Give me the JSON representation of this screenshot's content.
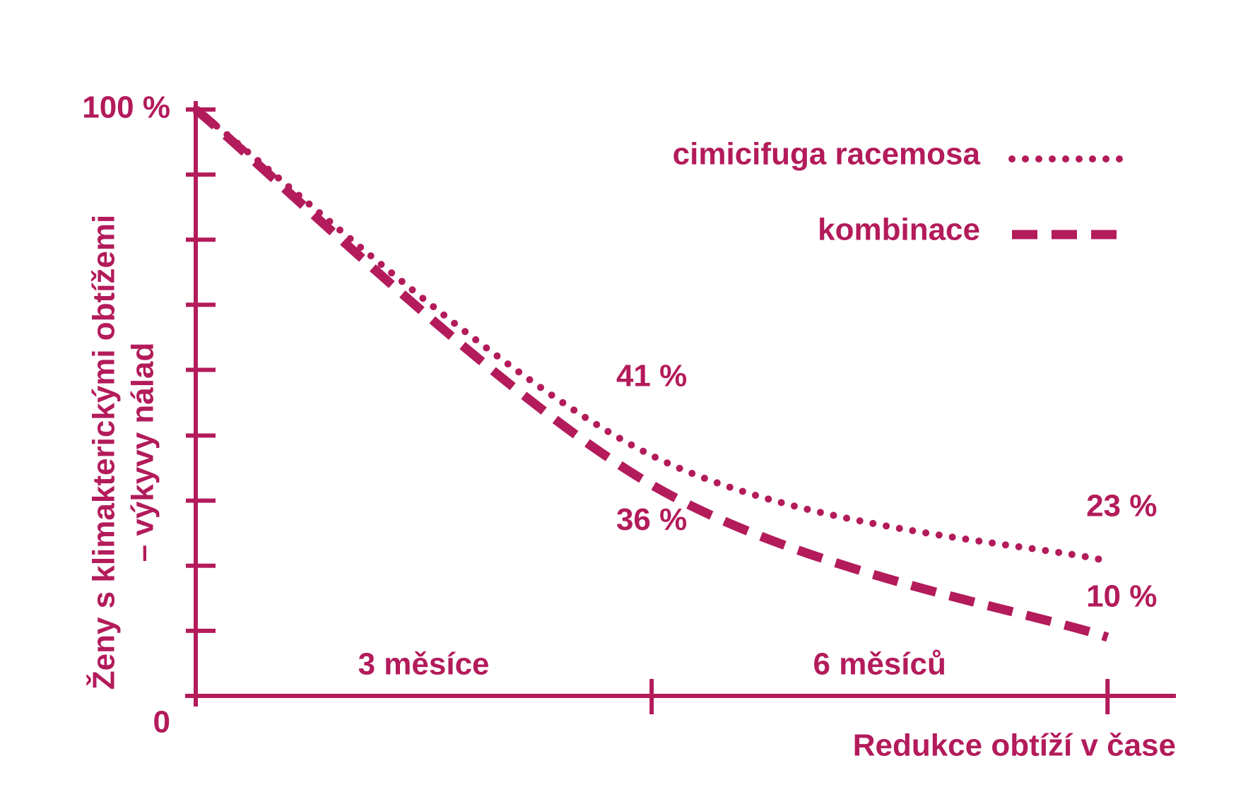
{
  "chart_data": {
    "type": "line",
    "ylabel": [
      "Ženy s klimakterickými obtížemi",
      "– výkyvy nálad"
    ],
    "xlabel": "Redukce obtíží v čase",
    "x": [
      0,
      3,
      6
    ],
    "xlim": [
      0,
      6.45
    ],
    "xticks": [
      {
        "value": 3,
        "label": "3 měsíce"
      },
      {
        "value": 6,
        "label": "6 měsíců"
      }
    ],
    "ylim": [
      0,
      100
    ],
    "yticks": [
      0,
      {
        "value": 100,
        "label": "100 %"
      }
    ],
    "minor_yticks": [
      11.1,
      22.2,
      33.3,
      44.4,
      55.6,
      66.7,
      77.8,
      88.9
    ],
    "legend": "top-right",
    "series": [
      {
        "name": "cimicifuga racemosa",
        "color": "#b31b5b",
        "line_style": "dotted",
        "values": [
          100,
          41,
          23
        ],
        "value_labels": [
          null,
          "41 %",
          "23 %"
        ]
      },
      {
        "name": "kombinace",
        "color": "#b31b5b",
        "line_style": "dashed",
        "values": [
          100,
          36,
          10
        ],
        "value_labels": [
          null,
          "36 %",
          "10 %"
        ]
      }
    ]
  }
}
